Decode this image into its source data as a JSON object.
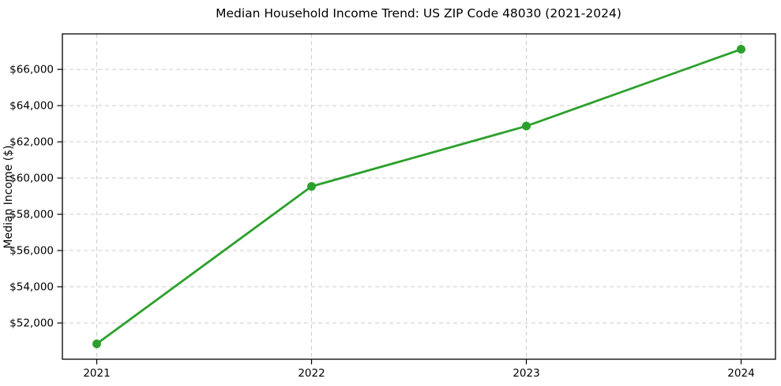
{
  "chart_data": {
    "type": "line",
    "title": "Median Household Income Trend: US ZIP Code 48030 (2021-2024)",
    "xlabel": "",
    "ylabel": "Median Income ($)",
    "categories": [
      "2021",
      "2022",
      "2023",
      "2024"
    ],
    "x": [
      2021,
      2022,
      2023,
      2024
    ],
    "series": [
      {
        "name": "Median Household Income",
        "values": [
          50850,
          59540,
          62870,
          67110
        ],
        "color": "#2ca02c",
        "marker": "circle"
      }
    ],
    "xlim": [
      2020.84,
      2024.16
    ],
    "ylim": [
      50000,
      67960
    ],
    "yticks": [
      52000,
      54000,
      56000,
      58000,
      60000,
      62000,
      64000,
      66000
    ],
    "ytick_labels": [
      "$52,000",
      "$54,000",
      "$56,000",
      "$58,000",
      "$60,000",
      "$62,000",
      "$64,000",
      "$66,000"
    ],
    "grid": true,
    "grid_style": "dashed",
    "grid_color": "#cccccc",
    "axis_color": "#000000",
    "text_color": "#000000",
    "legend_position": "none",
    "background_color": "#ffffff"
  }
}
